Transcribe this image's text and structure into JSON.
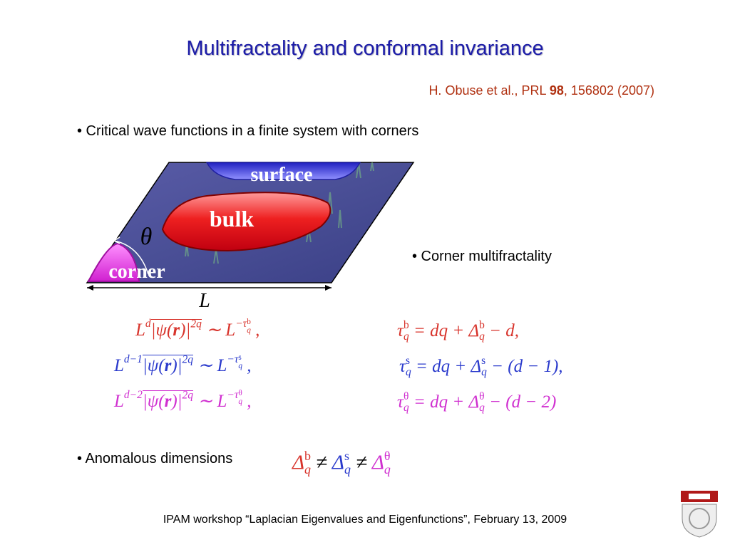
{
  "title": "Multifractality and conformal invariance",
  "citation": {
    "before": "H. Obuse et al., PRL ",
    "bold": "98",
    "after": ", 156802 (2007)"
  },
  "bullets": [
    "• Critical wave functions in a finite system with corners",
    "• Corner multifractality",
    "• Anomalous dimensions"
  ],
  "diagram": {
    "surface": "surface",
    "bulk": "bulk",
    "corner": "corner",
    "angle": "θ",
    "length": "L"
  },
  "colors": {
    "bulk": "#d8342c",
    "surface": "#2a3acc",
    "corner": "#d030d0"
  },
  "formulas_left": [
    {
      "color": "#d8342c",
      "tokens": [
        {
          "t": "L"
        },
        {
          "t": "d",
          "sup": true
        },
        {
          "t": "|ψ(",
          "o": true
        },
        {
          "t": "r",
          "o": true,
          "b": true
        },
        {
          "t": ")|",
          "o": true
        },
        {
          "t": "2q",
          "sup": true,
          "o": true
        },
        {
          "t": " ∼ L"
        },
        {
          "t": "−τ",
          "sup": true
        },
        {
          "up": "b",
          "down": "q",
          "sup": true
        },
        {
          "t": " ,"
        }
      ]
    },
    {
      "color": "#2a3acc",
      "tokens": [
        {
          "t": "L"
        },
        {
          "t": "d−1",
          "sup": true
        },
        {
          "t": "|ψ(",
          "o": true
        },
        {
          "t": "r",
          "o": true,
          "b": true
        },
        {
          "t": ")|",
          "o": true
        },
        {
          "t": "2q",
          "sup": true,
          "o": true
        },
        {
          "t": " ∼ L"
        },
        {
          "t": "−τ",
          "sup": true
        },
        {
          "up": "s",
          "down": "q",
          "sup": true
        },
        {
          "t": " ,"
        }
      ]
    },
    {
      "color": "#d030d0",
      "tokens": [
        {
          "t": "L"
        },
        {
          "t": "d−2",
          "sup": true
        },
        {
          "t": "|ψ(",
          "o": true
        },
        {
          "t": "r",
          "o": true,
          "b": true
        },
        {
          "t": ")|",
          "o": true
        },
        {
          "t": "2q",
          "sup": true,
          "o": true
        },
        {
          "t": " ∼ L"
        },
        {
          "t": "−τ",
          "sup": true
        },
        {
          "up": "θ",
          "down": "q",
          "sup": true
        },
        {
          "t": " ,"
        }
      ]
    }
  ],
  "formulas_right": [
    {
      "color": "#d8342c",
      "tokens": [
        {
          "t": "τ"
        },
        {
          "up": "b",
          "down": "q"
        },
        {
          "t": " = dq + Δ"
        },
        {
          "up": "b",
          "down": "q"
        },
        {
          "t": " − d,"
        }
      ]
    },
    {
      "color": "#2a3acc",
      "tokens": [
        {
          "t": "τ"
        },
        {
          "up": "s",
          "down": "q"
        },
        {
          "t": " = dq + Δ"
        },
        {
          "up": "s",
          "down": "q"
        },
        {
          "t": " − (d − 1),"
        }
      ]
    },
    {
      "color": "#d030d0",
      "tokens": [
        {
          "t": "τ"
        },
        {
          "up": "θ",
          "down": "q"
        },
        {
          "t": " = dq + Δ"
        },
        {
          "up": "θ",
          "down": "q"
        },
        {
          "t": " − (d − 2)"
        }
      ]
    }
  ],
  "anomalous": {
    "color": "#000000",
    "tokens": [
      {
        "t": "Δ",
        "color": "#d8342c"
      },
      {
        "up": "b",
        "down": "q",
        "color": "#d8342c"
      },
      {
        "t": " ≠ "
      },
      {
        "t": "Δ",
        "color": "#2a3acc"
      },
      {
        "up": "s",
        "down": "q",
        "color": "#2a3acc"
      },
      {
        "t": " ≠ "
      },
      {
        "t": "Δ",
        "color": "#d030d0"
      },
      {
        "up": "θ",
        "down": "q",
        "color": "#d030d0"
      }
    ]
  },
  "footer": "IPAM workshop “Laplacian Eigenvalues and Eigenfunctions”, February 13, 2009"
}
